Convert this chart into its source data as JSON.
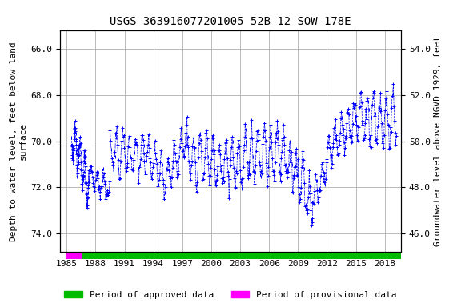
{
  "title": "USGS 363916077201005 52B 12 SOW 178E",
  "ylabel_left": "Depth to water level, feet below land\nsurface",
  "ylabel_right": "Groundwater level above NGVD 1929, feet",
  "ylim_left": [
    74.8,
    65.2
  ],
  "ylim_right": [
    45.2,
    54.8
  ],
  "yticks_left": [
    74.0,
    72.0,
    70.0,
    68.0,
    66.0
  ],
  "yticks_right": [
    46.0,
    48.0,
    50.0,
    52.0,
    54.0
  ],
  "xticks": [
    1985,
    1988,
    1991,
    1994,
    1997,
    2000,
    2003,
    2006,
    2009,
    2012,
    2015,
    2018
  ],
  "xlim": [
    1984.3,
    2019.7
  ],
  "line_color": "#0000FF",
  "approved_color": "#00BB00",
  "provisional_color": "#FF00FF",
  "background_color": "#ffffff",
  "grid_color": "#b0b0b0",
  "title_fontsize": 10,
  "axis_label_fontsize": 8,
  "tick_fontsize": 8,
  "legend_fontsize": 8
}
